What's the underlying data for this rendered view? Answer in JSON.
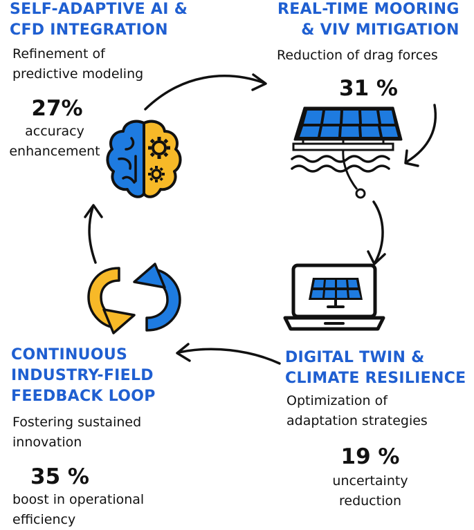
{
  "stages": [
    {
      "title_lines": [
        "SELF-ADAPTIVE AI &",
        "CFD INTEGRATION"
      ],
      "desc_lines": [
        "Refinement of",
        "predictive modeling"
      ],
      "stat_value": "27%",
      "stat_lines": [
        "accuracy",
        "enhancement"
      ],
      "icon": "brain-gears-icon"
    },
    {
      "title_lines": [
        "REAL-TIME MOORING",
        "& VIV MITIGATION"
      ],
      "desc_lines": [
        "Reduction of drag forces"
      ],
      "stat_value": "31 %",
      "stat_lines": [],
      "icon": "floating-solar-panel-icon"
    },
    {
      "title_lines": [
        "DIGITAL TWIN &",
        "CLIMATE RESILIENCE"
      ],
      "desc_lines": [
        "Optimization of",
        "adaptation strategies"
      ],
      "stat_value": "19 %",
      "stat_lines": [
        "uncertainty",
        "reduction"
      ],
      "icon": "laptop-solar-panel-icon"
    },
    {
      "title_lines": [
        "CONTINUOUS",
        "INDUSTRY-FIELD",
        "FEEDBACK LOOP"
      ],
      "desc_lines": [
        "Fostering sustained",
        "innovation"
      ],
      "stat_value": "35 %",
      "stat_lines": [
        "boost in operational",
        "efficiency"
      ],
      "icon": "refresh-cycle-icon"
    }
  ],
  "colors": {
    "title_blue": "#1f5fd1",
    "icon_blue": "#1e7be0",
    "icon_yellow": "#f7b928",
    "ink": "#111111"
  }
}
